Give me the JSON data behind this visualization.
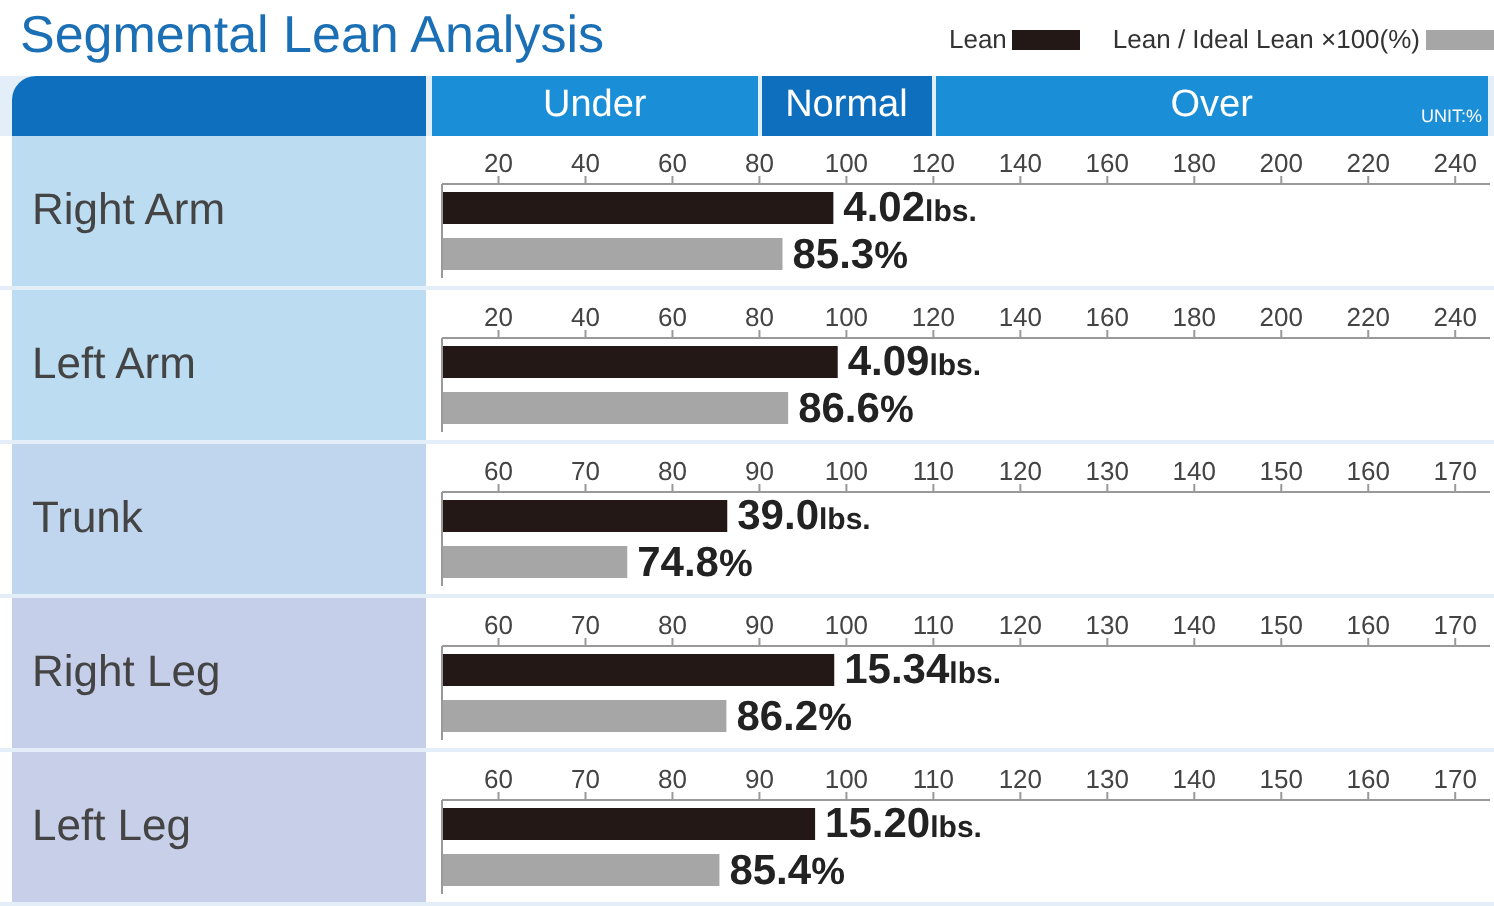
{
  "chart_data": [
    {
      "type": "bar",
      "orientation": "horizontal",
      "title": "Segmental Lean Analysis",
      "annotations": [
        "UNIT:%",
        {
          "text": "4.02lbs.",
          "x": 97,
          "y": "Right Arm"
        }
      ],
      "bands": [
        {
          "axis": "x",
          "from": 7,
          "to": 80,
          "label": "Under",
          "color": "#1a8fd8"
        },
        {
          "axis": "x",
          "from": 80,
          "to": 120,
          "label": "Normal",
          "color": "#0e6fbf"
        },
        {
          "axis": "x",
          "from": 120,
          "to": 248,
          "label": "Over",
          "color": "#1a8fd8"
        }
      ],
      "legend": "top right",
      "categories": [
        "Right Arm"
      ],
      "series": [
        {
          "name": "Lean",
          "color": "#231815",
          "values": [
            97
          ]
        },
        {
          "name": "Lean / Ideal Lean ×100(%)",
          "color": "#a6a6a6",
          "values": [
            85.3
          ],
          "value_labels": [
            "85.3%"
          ]
        }
      ],
      "xlim": [
        7,
        248
      ],
      "xticks": [
        20,
        40,
        60,
        80,
        100,
        120,
        140,
        160,
        180,
        200,
        220,
        240
      ]
    },
    {
      "type": "bar",
      "orientation": "horizontal",
      "categories": [
        "Left Arm"
      ],
      "annotations": [
        {
          "text": "4.09lbs.",
          "x": 98,
          "y": "Left Arm"
        }
      ],
      "series": [
        {
          "color": "#231815",
          "values": [
            98
          ]
        },
        {
          "color": "#a6a6a6",
          "values": [
            86.6
          ],
          "value_labels": [
            "86.6%"
          ]
        }
      ],
      "xlim": [
        7,
        248
      ],
      "xticks": [
        20,
        40,
        60,
        80,
        100,
        120,
        140,
        160,
        180,
        200,
        220,
        240
      ]
    },
    {
      "type": "bar",
      "orientation": "horizontal",
      "categories": [
        "Trunk"
      ],
      "annotations": [
        {
          "text": "39.0lbs.",
          "x": 86.3,
          "y": "Trunk"
        }
      ],
      "series": [
        {
          "color": "#231815",
          "values": [
            86.3
          ]
        },
        {
          "color": "#a6a6a6",
          "values": [
            74.8
          ],
          "value_labels": [
            "74.8%"
          ]
        }
      ],
      "xlim": [
        53.5,
        174
      ],
      "xticks": [
        60,
        70,
        80,
        90,
        100,
        110,
        120,
        130,
        140,
        150,
        160,
        170
      ]
    },
    {
      "type": "bar",
      "orientation": "horizontal",
      "categories": [
        "Right Leg"
      ],
      "annotations": [
        {
          "text": "15.34lbs.",
          "x": 98.6,
          "y": "Right Leg"
        }
      ],
      "series": [
        {
          "color": "#231815",
          "values": [
            98.6
          ]
        },
        {
          "color": "#a6a6a6",
          "values": [
            86.2
          ],
          "value_labels": [
            "86.2%"
          ]
        }
      ],
      "xlim": [
        53.5,
        174
      ],
      "xticks": [
        60,
        70,
        80,
        90,
        100,
        110,
        120,
        130,
        140,
        150,
        160,
        170
      ]
    },
    {
      "type": "bar",
      "orientation": "horizontal",
      "categories": [
        "Left Leg"
      ],
      "annotations": [
        {
          "text": "15.20lbs.",
          "x": 96.4,
          "y": "Left Leg"
        }
      ],
      "series": [
        {
          "color": "#231815",
          "values": [
            96.4
          ]
        },
        {
          "color": "#a6a6a6",
          "values": [
            85.4
          ],
          "value_labels": [
            "85.4%"
          ]
        }
      ],
      "xlim": [
        53.5,
        174
      ],
      "xticks": [
        60,
        70,
        80,
        90,
        100,
        110,
        120,
        130,
        140,
        150,
        160,
        170
      ]
    }
  ]
}
